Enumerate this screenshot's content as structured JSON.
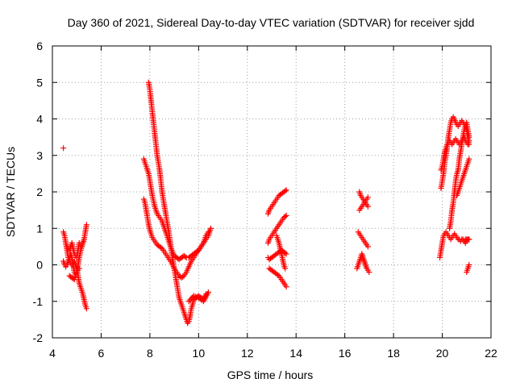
{
  "chart_data": {
    "type": "scatter",
    "title": "Day 360 of 2021, Sidereal Day-to-day VTEC variation (SDTVAR) for receiver sjdd",
    "xlabel": "GPS time / hours",
    "ylabel": "SDTVAR / TECUs",
    "xlim": [
      4,
      22
    ],
    "ylim": [
      -2,
      6
    ],
    "xticks": [
      "4",
      "6",
      "8",
      "10",
      "12",
      "14",
      "16",
      "18",
      "20",
      "22"
    ],
    "yticks": [
      "-2",
      "-1",
      "0",
      "1",
      "2",
      "3",
      "4",
      "5",
      "6"
    ],
    "grid": true,
    "marker": "plus",
    "color": "#ff0000",
    "series": [
      {
        "name": "sdtvar",
        "segments": [
          {
            "x": [
              4.45
            ],
            "y": [
              3.2
            ]
          },
          {
            "x": [
              4.45,
              4.5,
              4.55,
              4.6,
              4.65,
              4.7,
              4.75,
              4.8,
              4.85,
              4.9,
              4.95,
              5.0,
              5.05,
              5.1,
              5.15,
              5.2,
              5.25,
              5.3,
              5.35,
              5.4
            ],
            "y": [
              0.9,
              0.8,
              0.6,
              0.4,
              0.2,
              0.1,
              0.05,
              0.0,
              0.05,
              0.1,
              0.0,
              -0.1,
              -0.3,
              -0.5,
              -0.6,
              -0.7,
              -0.8,
              -0.95,
              -1.1,
              -1.2
            ]
          },
          {
            "x": [
              4.45,
              4.5,
              4.55,
              4.6,
              4.65,
              4.7,
              4.75,
              4.8,
              4.85,
              4.9,
              4.95,
              5.0,
              5.05,
              5.1,
              5.15,
              5.2,
              5.25,
              5.3,
              5.35,
              5.4
            ],
            "y": [
              0.1,
              0.0,
              -0.05,
              0.0,
              0.1,
              0.2,
              0.3,
              0.2,
              0.0,
              -0.2,
              -0.3,
              -0.2,
              0.0,
              0.2,
              0.35,
              0.5,
              0.6,
              0.7,
              0.9,
              1.1
            ]
          },
          {
            "x": [
              4.6,
              4.7,
              4.8,
              4.9,
              5.0,
              5.1,
              5.2,
              5.3
            ],
            "y": [
              0.5,
              0.4,
              0.6,
              0.3,
              0.2,
              0.6,
              0.5,
              0.7
            ]
          },
          {
            "x": [
              4.7,
              4.8,
              4.9,
              5.0,
              5.1
            ],
            "y": [
              -0.3,
              -0.35,
              -0.4,
              -0.2,
              -0.1
            ]
          },
          {
            "x": [
              7.75,
              7.8,
              7.85,
              7.9,
              7.95,
              8.0,
              8.05,
              8.1,
              8.2,
              8.3,
              8.4,
              8.5,
              8.6,
              8.7,
              8.8,
              8.9,
              9.0,
              9.1,
              9.2,
              9.3,
              9.4,
              9.5,
              9.6,
              9.7,
              9.8,
              9.9,
              10.0,
              10.1,
              10.2,
              10.3,
              10.4,
              10.5
            ],
            "y": [
              1.8,
              1.7,
              1.5,
              1.3,
              1.1,
              0.95,
              0.85,
              0.75,
              0.65,
              0.55,
              0.5,
              0.45,
              0.35,
              0.25,
              0.15,
              0.05,
              -0.1,
              -0.2,
              -0.3,
              -0.35,
              -0.3,
              -0.2,
              -0.05,
              0.1,
              0.2,
              0.3,
              0.4,
              0.5,
              0.6,
              0.7,
              0.8,
              1.0
            ]
          },
          {
            "x": [
              7.75,
              7.8,
              7.85,
              7.9,
              7.95,
              8.0,
              8.05,
              8.1,
              8.15,
              8.2,
              8.3,
              8.4,
              8.5,
              8.6,
              8.7,
              8.8,
              8.9,
              9.0,
              9.1,
              9.2,
              9.3,
              9.4,
              9.5,
              9.6,
              9.7,
              9.8,
              9.9,
              10.0,
              10.1,
              10.2,
              10.3,
              10.4
            ],
            "y": [
              2.9,
              2.8,
              2.7,
              2.6,
              2.5,
              2.3,
              2.1,
              1.9,
              1.75,
              1.6,
              1.4,
              1.3,
              1.2,
              1.0,
              0.8,
              0.6,
              0.4,
              0.25,
              0.2,
              0.15,
              0.2,
              0.25,
              0.2,
              0.2,
              0.25,
              0.3,
              0.35,
              0.4,
              0.5,
              0.6,
              0.8,
              0.9
            ]
          },
          {
            "x": [
              7.95,
              8.0,
              8.05,
              8.1,
              8.15,
              8.2,
              8.25,
              8.3,
              8.35,
              8.4,
              8.45,
              8.5,
              8.6,
              8.7,
              8.8,
              8.9,
              9.0,
              9.1,
              9.2,
              9.3,
              9.4,
              9.5,
              9.55,
              9.6,
              9.65,
              9.7,
              9.75,
              9.8,
              9.9,
              10.0,
              10.1,
              10.2,
              10.3
            ],
            "y": [
              5.0,
              4.8,
              4.5,
              4.2,
              3.9,
              3.6,
              3.3,
              3.0,
              2.8,
              2.6,
              2.3,
              2.0,
              1.6,
              1.2,
              0.8,
              0.3,
              -0.1,
              -0.5,
              -0.9,
              -1.1,
              -1.3,
              -1.5,
              -1.6,
              -1.55,
              -1.4,
              -1.2,
              -1.1,
              -0.95,
              -0.9,
              -0.85,
              -0.9,
              -0.95,
              -0.8
            ]
          },
          {
            "x": [
              9.6,
              9.8,
              10.0,
              10.2,
              10.4
            ],
            "y": [
              -1.0,
              -0.85,
              -0.9,
              -1.0,
              -0.75
            ]
          },
          {
            "x": [
              12.85,
              12.9,
              13.0,
              13.1,
              13.2,
              13.3,
              13.4,
              13.5,
              13.6
            ],
            "y": [
              1.4,
              1.5,
              1.6,
              1.7,
              1.8,
              1.9,
              1.95,
              2.0,
              2.05
            ]
          },
          {
            "x": [
              12.85,
              12.9,
              13.0,
              13.1,
              13.2,
              13.3,
              13.4,
              13.5,
              13.6
            ],
            "y": [
              0.6,
              0.7,
              0.8,
              0.9,
              1.0,
              1.1,
              1.2,
              1.3,
              1.35
            ]
          },
          {
            "x": [
              12.85,
              12.9,
              13.0,
              13.1,
              13.2,
              13.3,
              13.4,
              13.5,
              13.6
            ],
            "y": [
              0.2,
              0.15,
              0.2,
              0.25,
              0.3,
              0.35,
              0.4,
              0.35,
              0.3
            ]
          },
          {
            "x": [
              12.9,
              13.0,
              13.1,
              13.2,
              13.3,
              13.35,
              13.4,
              13.5,
              13.6
            ],
            "y": [
              -0.1,
              -0.15,
              -0.2,
              -0.25,
              -0.3,
              -0.35,
              -0.4,
              -0.5,
              -0.6
            ]
          },
          {
            "x": [
              13.2,
              13.3,
              13.4,
              13.5,
              13.55
            ],
            "y": [
              0.8,
              0.6,
              0.3,
              0.0,
              -0.1
            ]
          },
          {
            "x": [
              16.6,
              16.65,
              16.7,
              16.75,
              16.8,
              16.85,
              16.9,
              16.95
            ],
            "y": [
              2.0,
              1.9,
              1.85,
              1.8,
              1.75,
              1.7,
              1.65,
              1.6
            ]
          },
          {
            "x": [
              16.6,
              16.65,
              16.7,
              16.75,
              16.8,
              16.85,
              16.9,
              16.95
            ],
            "y": [
              1.5,
              1.55,
              1.6,
              1.65,
              1.7,
              1.75,
              1.8,
              1.85
            ]
          },
          {
            "x": [
              16.55,
              16.6,
              16.65,
              16.7,
              16.75,
              16.8,
              16.85,
              16.9,
              16.95
            ],
            "y": [
              0.9,
              0.85,
              0.8,
              0.75,
              0.7,
              0.65,
              0.6,
              0.55,
              0.5
            ]
          },
          {
            "x": [
              16.5,
              16.55,
              16.6,
              16.65,
              16.7,
              16.9,
              17.0
            ],
            "y": [
              -0.1,
              0.0,
              0.1,
              0.2,
              0.3,
              -0.1,
              -0.2
            ]
          },
          {
            "x": [
              19.9,
              19.95,
              20.0,
              20.05,
              20.1,
              20.15,
              20.2,
              20.25,
              20.3,
              20.35,
              20.4,
              20.45,
              20.5,
              20.55,
              20.6,
              20.65,
              20.7,
              20.75,
              20.8,
              20.85,
              20.9,
              20.95,
              21.0,
              21.05,
              21.1
            ],
            "y": [
              0.2,
              0.4,
              0.6,
              0.8,
              0.85,
              0.9,
              0.85,
              0.8,
              0.75,
              0.7,
              0.75,
              0.8,
              0.85,
              0.8,
              0.75,
              0.7,
              0.7,
              0.65,
              0.7,
              0.7,
              0.65,
              0.7,
              0.7,
              0.7,
              0.7
            ]
          },
          {
            "x": [
              19.95,
              20.0,
              20.05,
              20.1,
              20.15,
              20.2,
              20.25,
              20.3,
              20.35,
              20.4,
              20.45,
              20.5,
              20.55,
              20.6,
              20.65,
              20.7,
              20.75,
              20.8,
              20.85,
              20.9,
              20.95,
              21.0,
              21.05,
              21.1
            ],
            "y": [
              2.1,
              2.3,
              2.5,
              2.8,
              3.0,
              3.2,
              3.5,
              3.7,
              3.9,
              4.0,
              4.05,
              4.0,
              3.9,
              3.85,
              3.8,
              3.85,
              3.9,
              3.95,
              3.9,
              3.85,
              3.8,
              3.7,
              3.5,
              3.3
            ]
          },
          {
            "x": [
              19.95,
              20.0,
              20.05,
              20.1,
              20.15,
              20.2,
              20.25,
              20.3,
              20.35,
              20.4,
              20.45,
              20.5,
              20.55,
              20.6,
              20.65,
              20.7,
              20.75,
              20.8,
              20.85,
              20.9,
              20.95,
              21.0,
              21.05,
              21.1
            ],
            "y": [
              2.6,
              2.7,
              2.9,
              3.1,
              3.2,
              3.3,
              3.35,
              3.4,
              3.35,
              3.3,
              3.35,
              3.4,
              3.45,
              3.4,
              3.35,
              3.3,
              3.35,
              3.4,
              3.45,
              3.5,
              3.4,
              3.35,
              3.3,
              3.4
            ]
          },
          {
            "x": [
              20.3,
              20.35,
              20.4,
              20.45,
              20.5,
              20.55,
              20.6,
              20.65,
              20.7,
              20.75,
              20.8,
              20.85,
              20.9,
              20.95,
              21.0,
              21.05,
              21.1
            ],
            "y": [
              1.0,
              1.2,
              1.5,
              1.7,
              2.0,
              2.3,
              2.5,
              2.6,
              2.9,
              3.1,
              3.3,
              3.5,
              3.7,
              3.8,
              3.9,
              3.7,
              3.5
            ]
          },
          {
            "x": [
              20.6,
              20.7,
              20.8,
              20.9,
              21.0,
              21.05,
              21.1
            ],
            "y": [
              1.9,
              2.1,
              2.3,
              2.5,
              2.7,
              2.8,
              2.9
            ]
          },
          {
            "x": [
              20.9,
              20.95,
              21.0,
              21.05,
              21.1
            ],
            "y": [
              0.65,
              0.6,
              0.65,
              0.7,
              0.7
            ]
          },
          {
            "x": [
              21.0,
              21.05,
              21.1
            ],
            "y": [
              -0.2,
              -0.1,
              0.0
            ]
          }
        ]
      }
    ]
  }
}
